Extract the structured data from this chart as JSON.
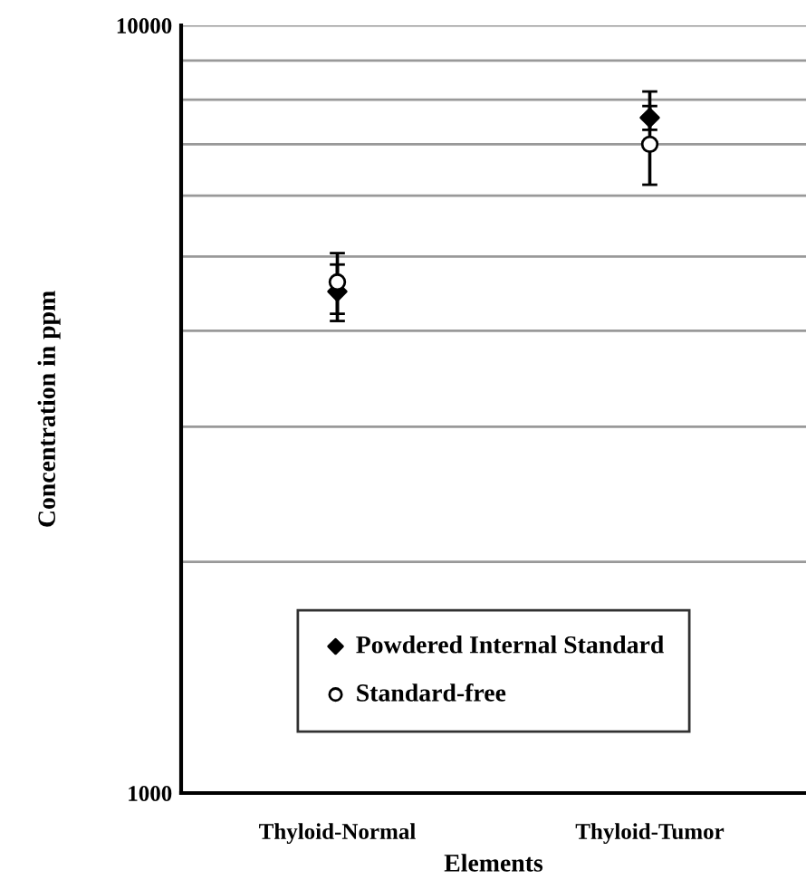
{
  "chart_data": {
    "type": "scatter",
    "xlabel": "Elements",
    "ylabel": "Concentration in ppm",
    "categories": [
      "Thyloid-Normal",
      "Thyloid-Tumor"
    ],
    "series": [
      {
        "name": "Powdered Internal Standard",
        "color": "#000000",
        "marker": "diamond",
        "values": [
          4500,
          7580
        ],
        "errors": [
          380,
          270
        ]
      },
      {
        "name": "Standard-free",
        "color": "#ffffff",
        "marker": "circle",
        "values": [
          4630,
          7000
        ],
        "errors": [
          420,
          [
            6200,
            8200
          ]
        ]
      }
    ],
    "log": "y",
    "ylim": [
      1000,
      10000
    ],
    "yticks": [
      1000,
      {
        "value": 2000,
        "label": null
      },
      {
        "value": 3000,
        "label": null
      },
      {
        "value": 4000,
        "label": null
      },
      {
        "value": 5000,
        "label": null
      },
      {
        "value": 6000,
        "label": null
      },
      {
        "value": 7000,
        "label": null
      },
      {
        "value": 8000,
        "label": null
      },
      {
        "value": 9000,
        "label": null
      },
      10000
    ],
    "grid": "y",
    "legend": "bottom"
  }
}
